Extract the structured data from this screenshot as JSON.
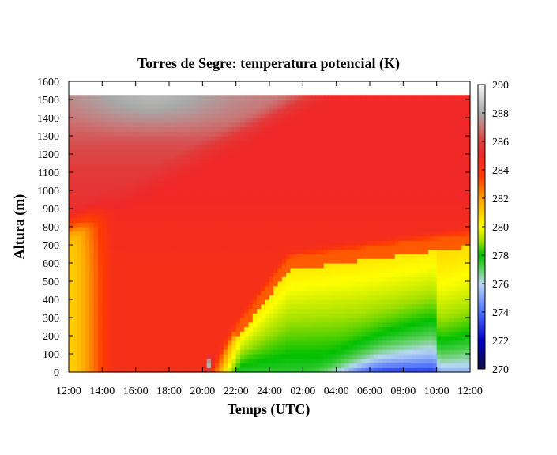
{
  "chart_data": {
    "type": "heatmap",
    "title": "Torres de Segre: temperatura potencial (K)",
    "xlabel": "Temps (UTC)",
    "ylabel": "Altura (m)",
    "x_ticks": [
      "12:00",
      "14:00",
      "16:00",
      "18:00",
      "20:00",
      "22:00",
      "24:00",
      "02:00",
      "04:00",
      "06:00",
      "08:00",
      "10:00",
      "12:00"
    ],
    "y_ticks": [
      0,
      100,
      200,
      300,
      400,
      500,
      600,
      700,
      800,
      900,
      1000,
      1100,
      1200,
      1300,
      1400,
      1500,
      1600
    ],
    "ylim": [
      0,
      1600
    ],
    "data_top_height": 1525,
    "colorbar": {
      "min": 270,
      "max": 290,
      "ticks": [
        270,
        272,
        274,
        276,
        278,
        280,
        282,
        284,
        286,
        288,
        290
      ],
      "stops": [
        {
          "value": 270,
          "color": "#101040"
        },
        {
          "value": 272,
          "color": "#0000c8"
        },
        {
          "value": 274,
          "color": "#5070ff"
        },
        {
          "value": 276,
          "color": "#b8d8f0"
        },
        {
          "value": 277,
          "color": "#60d060"
        },
        {
          "value": 278,
          "color": "#00c000"
        },
        {
          "value": 279,
          "color": "#a0e000"
        },
        {
          "value": 280,
          "color": "#ffff00"
        },
        {
          "value": 282,
          "color": "#ffa000"
        },
        {
          "value": 283.5,
          "color": "#ff3c00"
        },
        {
          "value": 285,
          "color": "#f02828"
        },
        {
          "value": 286,
          "color": "#e03c3c"
        },
        {
          "value": 287,
          "color": "#c87878"
        },
        {
          "value": 288,
          "color": "#a8a8a8"
        },
        {
          "value": 290,
          "color": "#f8f8f8"
        }
      ]
    },
    "grid": false,
    "legend": "colorbar-right"
  }
}
